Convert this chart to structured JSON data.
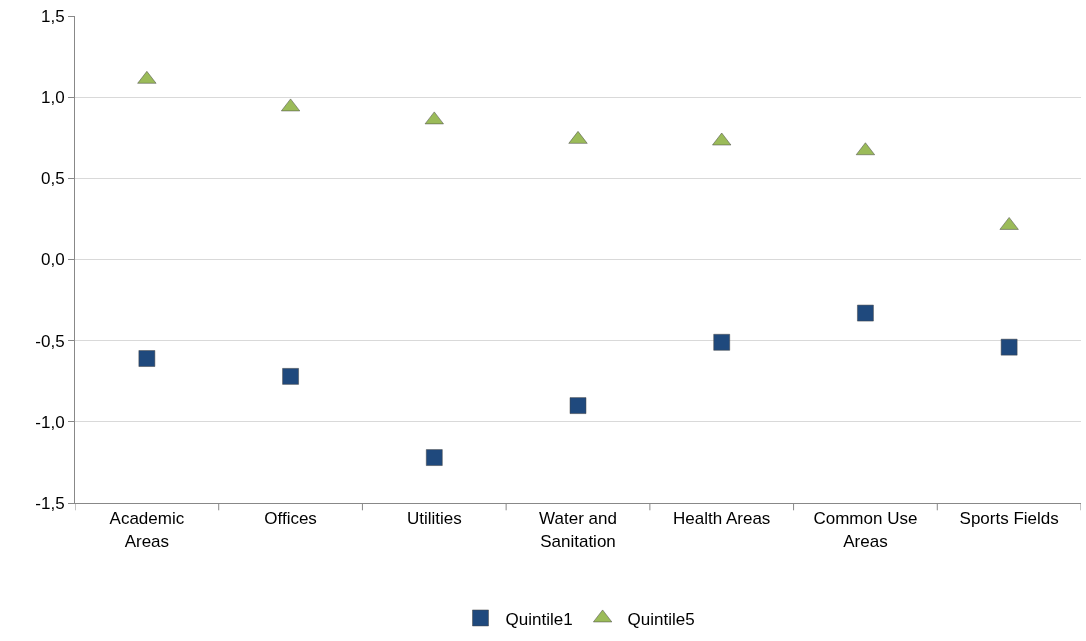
{
  "chart_data": {
    "type": "scatter",
    "categories": [
      "Academic Areas",
      "Offices",
      "Utilities",
      "Water and Sanitation",
      "Health Areas",
      "Common Use Areas",
      "Sports Fields"
    ],
    "series": [
      {
        "name": "Quintile1",
        "color": "#1f497d",
        "marker": "square",
        "values": [
          -0.61,
          -0.72,
          -1.22,
          -0.9,
          -0.51,
          -0.33,
          -0.54
        ]
      },
      {
        "name": "Quintile5",
        "color": "#9bbb59",
        "marker": "triangle",
        "values": [
          1.11,
          0.94,
          0.86,
          0.74,
          0.73,
          0.67,
          0.21
        ]
      }
    ],
    "ylim": [
      -1.5,
      1.5
    ],
    "yticks": [
      {
        "value": -1.5,
        "label": "-1,5"
      },
      {
        "value": -1,
        "label": "-1,0"
      },
      {
        "value": -0.5,
        "label": "-0,5"
      },
      {
        "value": 0,
        "label": "0,0"
      },
      {
        "value": 0.5,
        "label": "0,5"
      },
      {
        "value": 1,
        "label": "1,0"
      },
      {
        "value": 1.5,
        "label": "1,5"
      }
    ],
    "grid": "y",
    "legend": "bottom"
  }
}
